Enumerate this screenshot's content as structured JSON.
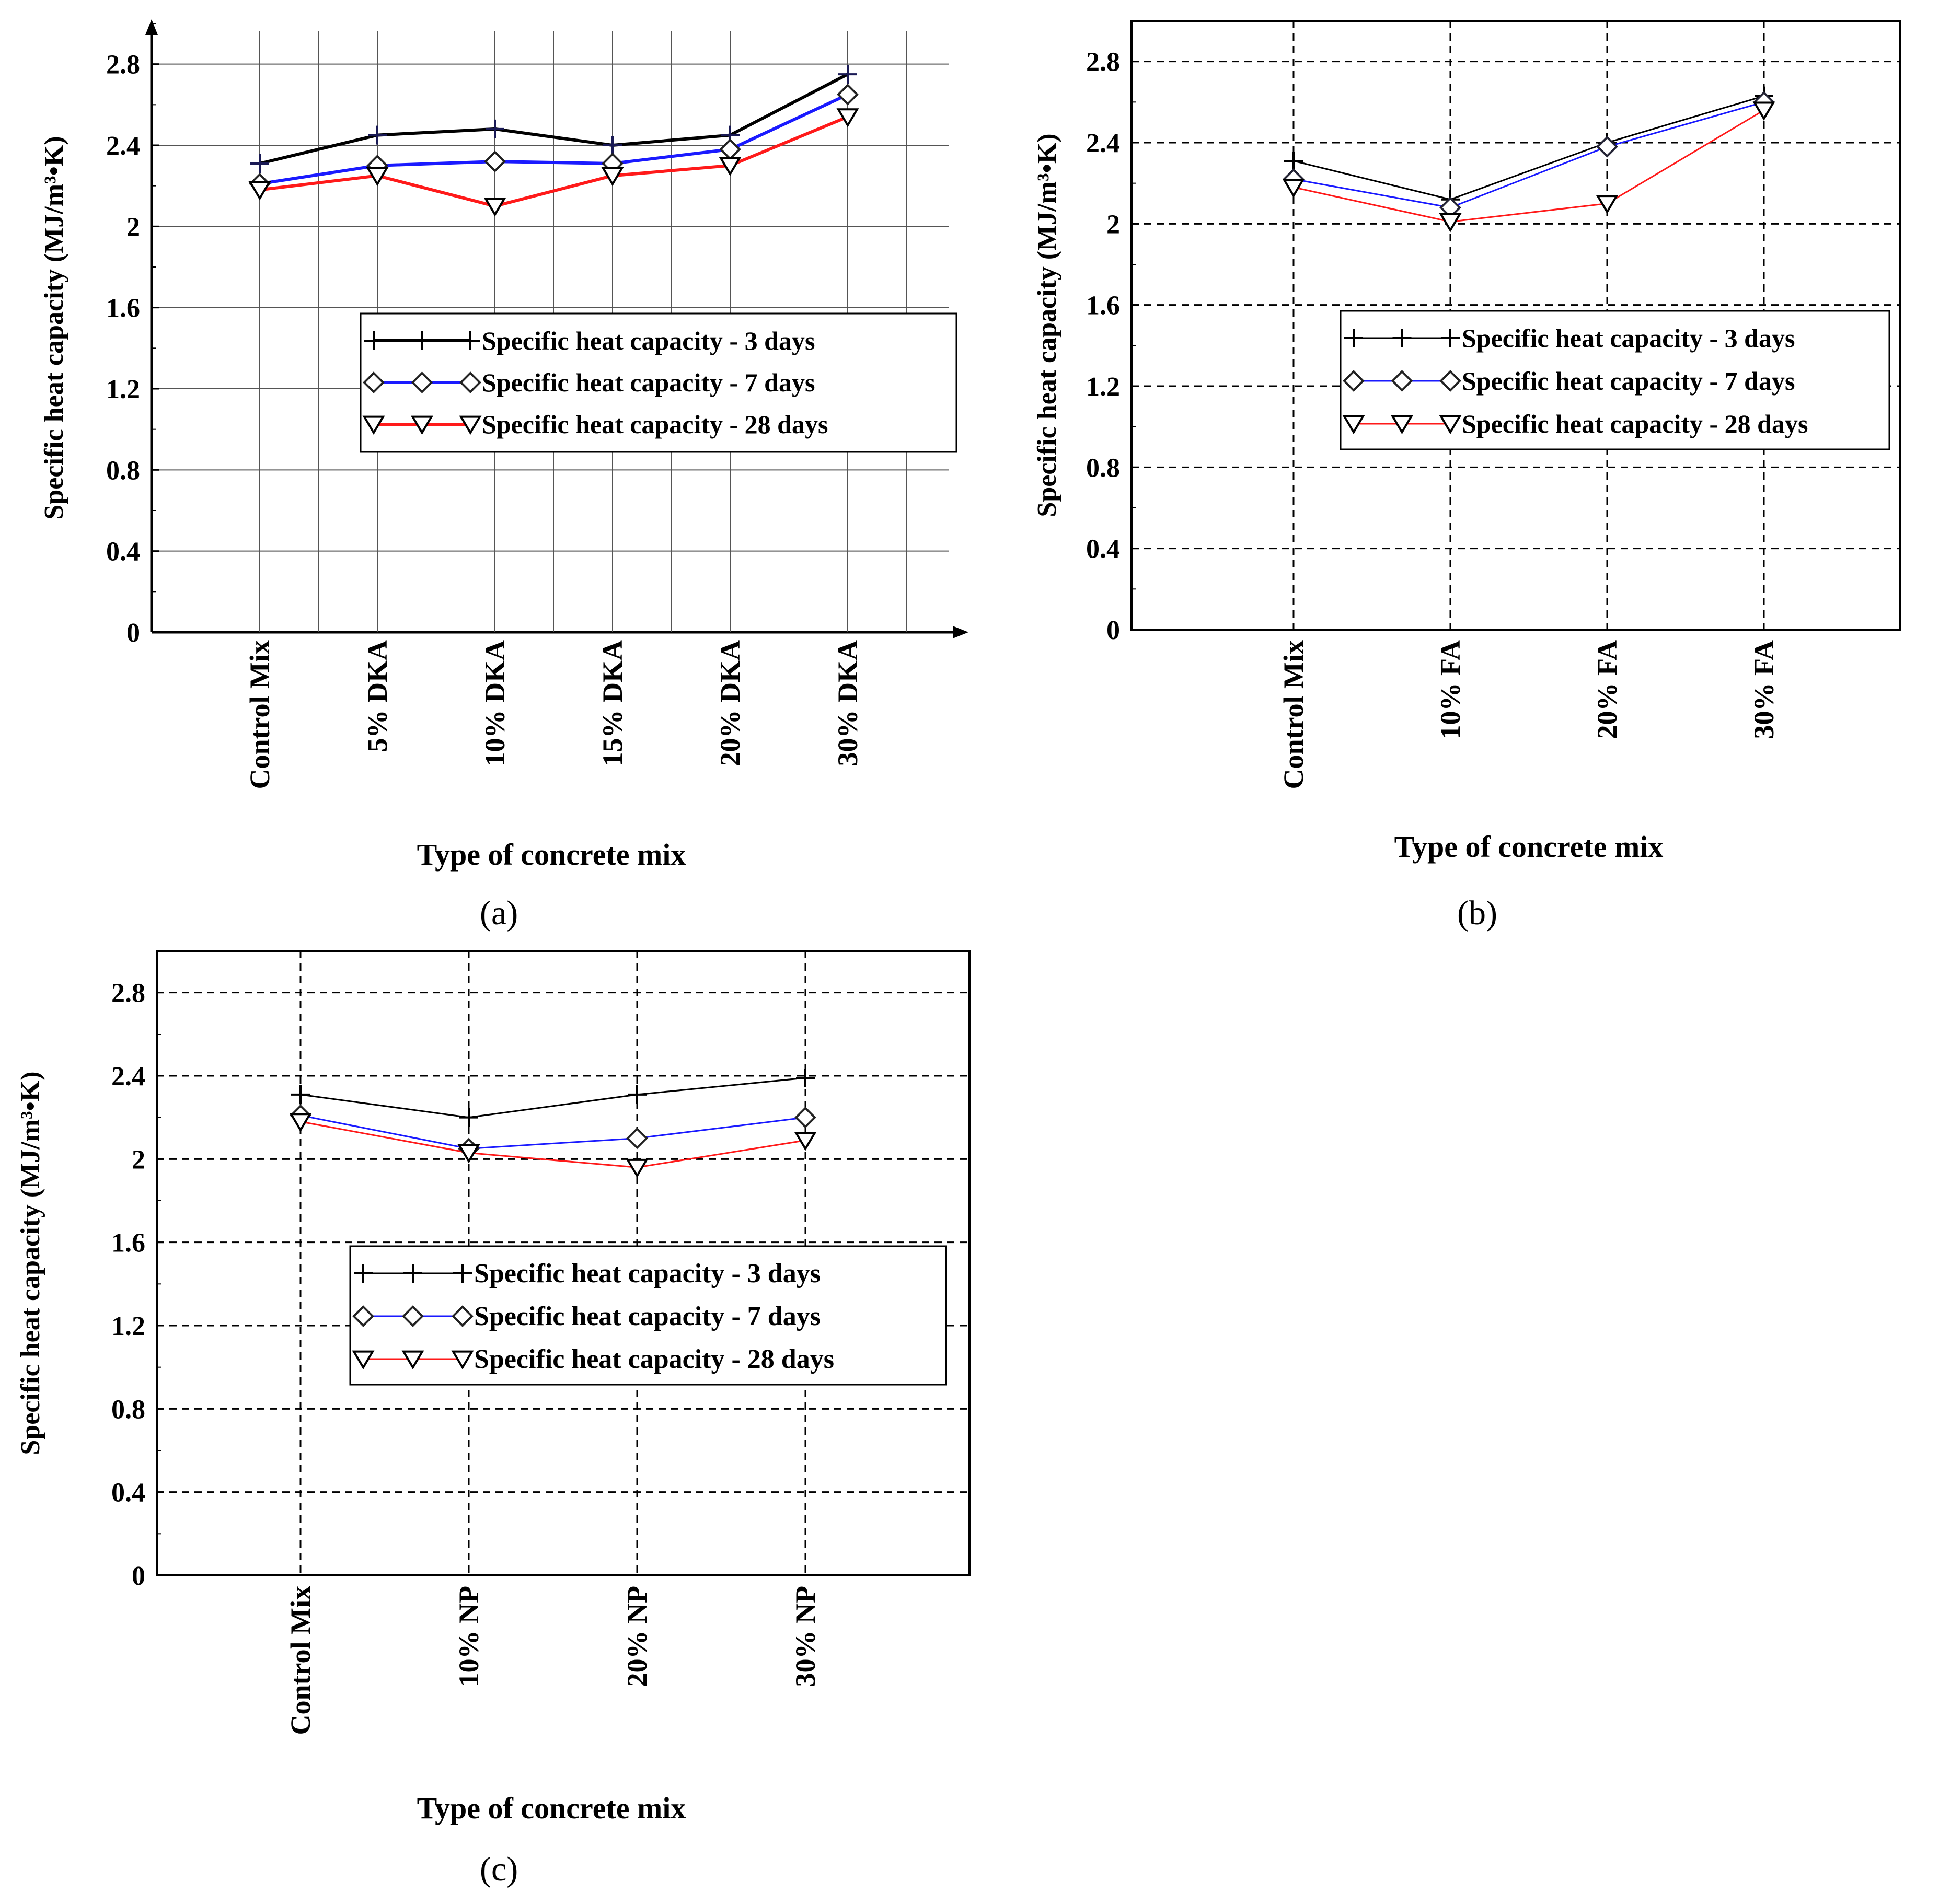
{
  "colors": {
    "series_3d": "#000000",
    "series_7d": "#1a1aff",
    "series_28d": "#ff1a1a",
    "grid": "#000000"
  },
  "chart_data": [
    {
      "type": "line",
      "panel_label": "(a)",
      "title": "",
      "xlabel": "Type of concrete mix",
      "ylabel": "Specific heat capacity (MJ/m³•K)",
      "ylim": [
        0,
        3.0
      ],
      "yticks": [
        "0",
        "0.4",
        "0.8",
        "1.2",
        "1.6",
        "2",
        "2.4",
        "2.8"
      ],
      "grid": true,
      "legend_position": "center-right",
      "categories": [
        "Control Mix",
        "5% DKA",
        "10% DKA",
        "15% DKA",
        "20% DKA",
        "30% DKA"
      ],
      "series": [
        {
          "name": "Specific heat capacity - 3 days",
          "marker": "plus",
          "values": [
            2.31,
            2.45,
            2.48,
            2.4,
            2.45,
            2.75
          ]
        },
        {
          "name": "Specific heat capacity - 7 days",
          "marker": "diamond",
          "values": [
            2.21,
            2.3,
            2.32,
            2.31,
            2.38,
            2.65
          ]
        },
        {
          "name": "Specific heat capacity - 28 days",
          "marker": "triangle-down",
          "values": [
            2.18,
            2.25,
            2.1,
            2.25,
            2.3,
            2.54
          ]
        }
      ]
    },
    {
      "type": "line",
      "panel_label": "(b)",
      "title": "",
      "xlabel": "Type of concrete mix",
      "ylabel": "Specific heat capacity (MJ/m³•K)",
      "ylim": [
        0,
        3.0
      ],
      "yticks": [
        "0",
        "0.4",
        "0.8",
        "1.2",
        "1.6",
        "2",
        "2.4",
        "2.8"
      ],
      "grid": true,
      "legend_position": "center-right",
      "categories": [
        "Control Mix",
        "10% FA",
        "20% FA",
        "30% FA"
      ],
      "series": [
        {
          "name": "Specific heat capacity - 3 days",
          "marker": "plus",
          "values": [
            2.31,
            2.12,
            2.4,
            2.63
          ]
        },
        {
          "name": "Specific heat capacity - 7 days",
          "marker": "diamond",
          "values": [
            2.22,
            2.08,
            2.38,
            2.6
          ]
        },
        {
          "name": "Specific heat capacity - 28 days",
          "marker": "triangle-down",
          "values": [
            2.18,
            2.01,
            2.1,
            2.56
          ]
        }
      ]
    },
    {
      "type": "line",
      "panel_label": "(c)",
      "title": "",
      "xlabel": "Type of concrete mix",
      "ylabel": "Specific heat capacity (MJ/m³•K)",
      "ylim": [
        0,
        3.0
      ],
      "yticks": [
        "0",
        "0.4",
        "0.8",
        "1.2",
        "1.6",
        "2",
        "2.4",
        "2.8"
      ],
      "grid": true,
      "legend_position": "center-right",
      "categories": [
        "Control Mix",
        "10% NP",
        "20% NP",
        "30% NP"
      ],
      "series": [
        {
          "name": "Specific heat capacity - 3 days",
          "marker": "plus",
          "values": [
            2.31,
            2.2,
            2.31,
            2.39
          ]
        },
        {
          "name": "Specific heat capacity - 7 days",
          "marker": "diamond",
          "values": [
            2.21,
            2.05,
            2.1,
            2.2
          ]
        },
        {
          "name": "Specific heat capacity - 28 days",
          "marker": "triangle-down",
          "values": [
            2.18,
            2.03,
            1.96,
            2.09
          ]
        }
      ]
    }
  ]
}
